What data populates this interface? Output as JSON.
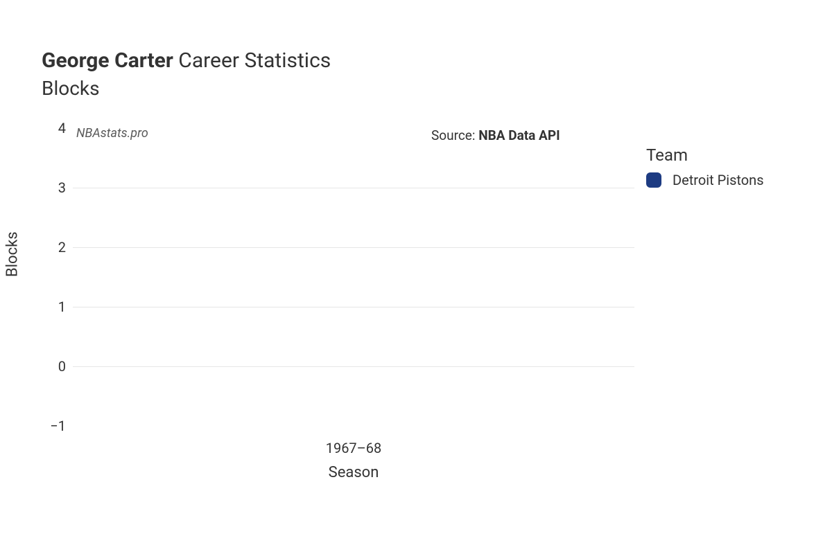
{
  "title": {
    "player": "George Carter",
    "suffix": "Career Statistics",
    "subtitle": "Blocks"
  },
  "source": {
    "prefix": "Source: ",
    "name": "NBA Data API"
  },
  "watermark": "NBAstats.pro",
  "axes": {
    "xlabel": "Season",
    "ylabel": "Blocks",
    "ylim": [
      -1,
      4
    ],
    "yticks": [
      -1,
      0,
      1,
      2,
      3,
      4
    ],
    "xticks": [
      "1967–68"
    ],
    "grid_color": "#e6e6e6",
    "label_fontsize": 22,
    "tick_fontsize": 20
  },
  "chart": {
    "type": "bar",
    "categories": [
      "1967–68"
    ],
    "values": [
      0
    ],
    "bar_colors": [
      "#1d3b82"
    ]
  },
  "legend": {
    "title": "Team",
    "items": [
      {
        "label": "Detroit Pistons",
        "color": "#1d3b82"
      }
    ]
  },
  "colors": {
    "background": "#ffffff",
    "text": "#333333"
  }
}
